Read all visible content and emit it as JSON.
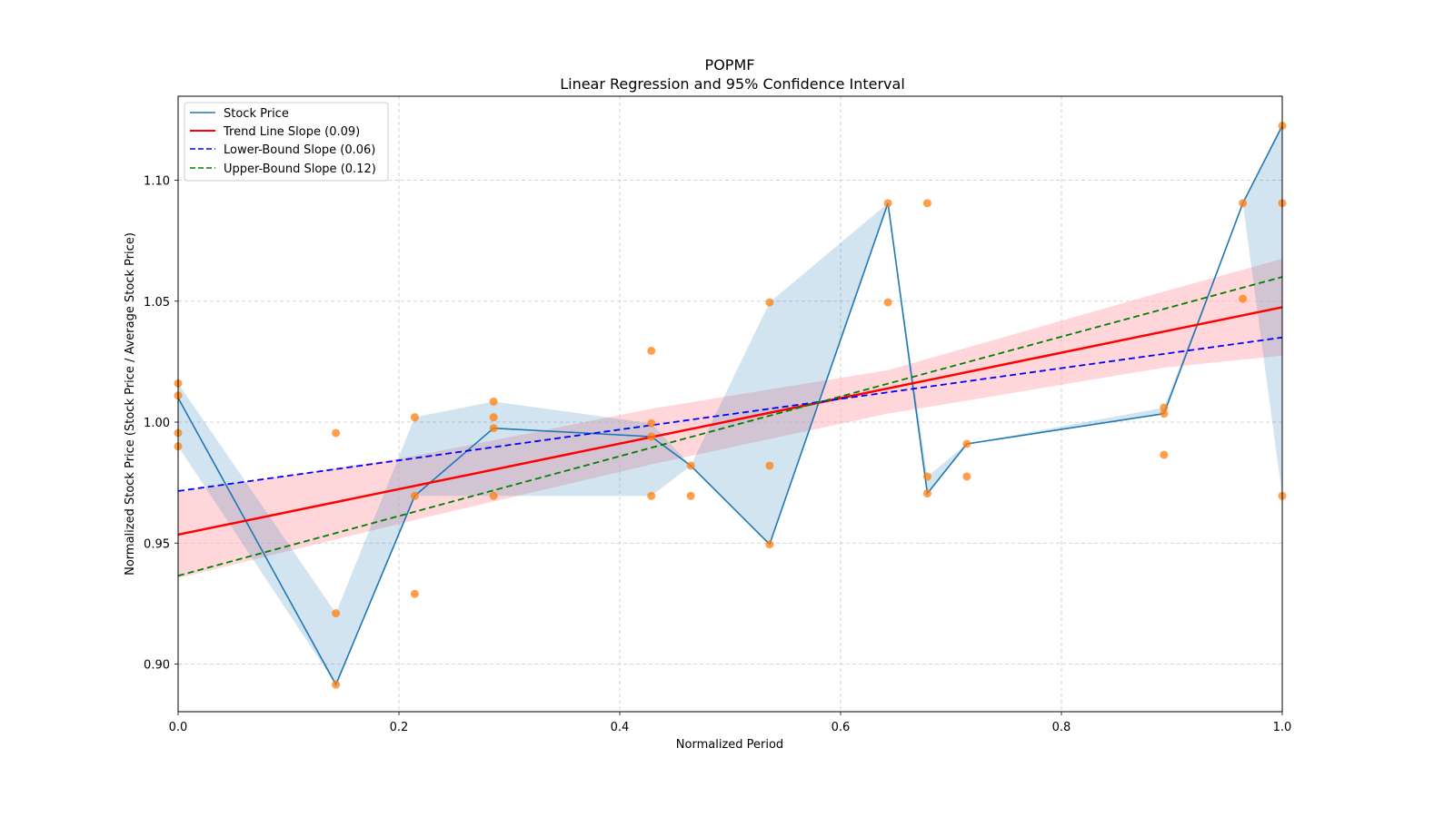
{
  "chart_data": {
    "type": "line",
    "title": "POPMF",
    "subtitle": "Linear Regression and 95% Confidence Interval",
    "xlabel": "Normalized Period",
    "ylabel": "Normalized Stock Price (Stock Price / Average Stock Price)",
    "xlim": [
      0.0,
      1.0
    ],
    "ylim": [
      0.88,
      1.135
    ],
    "grid": true,
    "legend_position": "top-left",
    "x_ticks": [
      "0.0",
      "0.2",
      "0.4",
      "0.6",
      "0.8",
      "1.0"
    ],
    "x_tick_values": [
      0.0,
      0.2,
      0.4,
      0.6,
      0.8,
      1.0
    ],
    "y_ticks": [
      "0.90",
      "0.95",
      "1.00",
      "1.05",
      "1.10"
    ],
    "y_tick_values": [
      0.9,
      0.95,
      1.0,
      1.05,
      1.1
    ],
    "legend": [
      {
        "label": "Stock Price",
        "color": "#1f77b4",
        "style": "solid"
      },
      {
        "label": "Trend Line Slope (0.09)",
        "color": "#ff0000",
        "style": "solid"
      },
      {
        "label": "Lower-Bound Slope (0.06)",
        "color": "#0000ff",
        "style": "dashed"
      },
      {
        "label": "Upper-Bound Slope (0.12)",
        "color": "#008000",
        "style": "dashed"
      }
    ],
    "stock_price": {
      "x": [
        0.0,
        0.1429,
        0.2143,
        0.2857,
        0.4286,
        0.4643,
        0.5357,
        0.6429,
        0.6786,
        0.7143,
        0.8929,
        0.9643,
        1.0
      ],
      "y": [
        1.01,
        0.8915,
        0.9695,
        0.9975,
        0.994,
        0.982,
        0.9495,
        1.0905,
        0.9705,
        0.991,
        1.0035,
        1.0905,
        1.1225
      ],
      "band_low": [
        0.99,
        0.8915,
        0.9695,
        0.9695,
        0.9695,
        0.982,
        0.9495,
        1.0905,
        0.9705,
        0.991,
        1.0035,
        1.0905,
        0.9695
      ],
      "band_high": [
        1.016,
        0.921,
        1.002,
        1.0085,
        0.9995,
        0.982,
        1.0495,
        1.0905,
        0.9775,
        0.991,
        1.006,
        1.0905,
        1.1225
      ],
      "color": "#1f77b4"
    },
    "scatter": {
      "color": "#ff7f0e",
      "points": [
        [
          0.0,
          1.016
        ],
        [
          0.0,
          1.011
        ],
        [
          0.0,
          0.9955
        ],
        [
          0.0,
          0.99
        ],
        [
          0.1429,
          0.9955
        ],
        [
          0.1429,
          0.921
        ],
        [
          0.1429,
          0.8915
        ],
        [
          0.2143,
          1.002
        ],
        [
          0.2143,
          0.9695
        ],
        [
          0.2143,
          0.929
        ],
        [
          0.2857,
          1.0085
        ],
        [
          0.2857,
          1.002
        ],
        [
          0.2857,
          0.9975
        ],
        [
          0.2857,
          0.9695
        ],
        [
          0.4286,
          1.0295
        ],
        [
          0.4286,
          0.9995
        ],
        [
          0.4286,
          0.994
        ],
        [
          0.4286,
          0.9695
        ],
        [
          0.4643,
          0.982
        ],
        [
          0.4643,
          0.9695
        ],
        [
          0.5357,
          1.0495
        ],
        [
          0.5357,
          0.982
        ],
        [
          0.5357,
          0.9495
        ],
        [
          0.6429,
          1.0905
        ],
        [
          0.6429,
          1.0495
        ],
        [
          0.6786,
          1.0905
        ],
        [
          0.6786,
          0.9775
        ],
        [
          0.6786,
          0.9705
        ],
        [
          0.7143,
          0.991
        ],
        [
          0.7143,
          0.9775
        ],
        [
          0.8929,
          1.006
        ],
        [
          0.8929,
          1.0035
        ],
        [
          0.8929,
          0.9865
        ],
        [
          0.9643,
          1.0905
        ],
        [
          0.9643,
          1.051
        ],
        [
          1.0,
          1.1225
        ],
        [
          1.0,
          1.0905
        ],
        [
          1.0,
          0.9695
        ]
      ]
    },
    "trend_line": {
      "x": [
        0.0,
        1.0
      ],
      "y": [
        0.9535,
        1.0475
      ],
      "slope": 0.09,
      "color": "#ff0000"
    },
    "trend_ci": {
      "x": [
        0.0,
        0.2143,
        0.4286,
        0.6429,
        0.8929,
        1.0
      ],
      "low": [
        0.9355,
        0.9595,
        0.9825,
        1.0035,
        1.0225,
        1.0275
      ],
      "high": [
        0.971,
        0.986,
        1.0055,
        1.0215,
        1.054,
        1.0675
      ],
      "color": "#ffb6bb"
    },
    "lower_bound_line": {
      "x": [
        0.0,
        1.0
      ],
      "y": [
        0.9715,
        1.035
      ],
      "slope": 0.06,
      "color": "#0000ff"
    },
    "upper_bound_line": {
      "x": [
        0.0,
        1.0
      ],
      "y": [
        0.9365,
        1.06
      ],
      "slope": 0.12,
      "color": "#008000"
    }
  }
}
